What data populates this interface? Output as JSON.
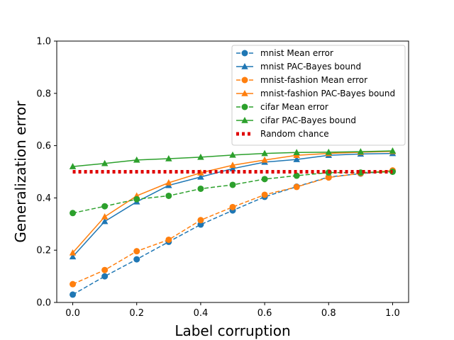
{
  "chart_data": {
    "type": "line",
    "title": "",
    "xlabel": "Label corruption",
    "ylabel": "Generalization error",
    "xlim": [
      -0.05,
      1.05
    ],
    "ylim": [
      0.0,
      1.0
    ],
    "xticks": [
      "0.0",
      "0.2",
      "0.4",
      "0.6",
      "0.8",
      "1.0"
    ],
    "yticks": [
      "0.0",
      "0.2",
      "0.4",
      "0.6",
      "0.8",
      "1.0"
    ],
    "xtick_values": [
      0.0,
      0.2,
      0.4,
      0.6,
      0.8,
      1.0
    ],
    "ytick_values": [
      0.0,
      0.2,
      0.4,
      0.6,
      0.8,
      1.0
    ],
    "grid": false,
    "legend_position": "top-right",
    "x": [
      0.0,
      0.1,
      0.2,
      0.3,
      0.4,
      0.5,
      0.6,
      0.7,
      0.8,
      0.9,
      1.0
    ],
    "series": [
      {
        "name": "mnist Mean error",
        "color": "#1f77b4",
        "dash": "dashed",
        "marker": "circle",
        "values": [
          0.03,
          0.1,
          0.165,
          0.232,
          0.298,
          0.352,
          0.404,
          0.443,
          0.48,
          0.493,
          0.503
        ]
      },
      {
        "name": "mnist PAC-Bayes bound",
        "color": "#1f77b4",
        "dash": "solid",
        "marker": "triangle",
        "values": [
          0.175,
          0.31,
          0.385,
          0.448,
          0.48,
          0.512,
          0.537,
          0.547,
          0.563,
          0.568,
          0.57
        ]
      },
      {
        "name": "mnist-fashion Mean error",
        "color": "#ff7f0e",
        "dash": "dashed",
        "marker": "circle",
        "values": [
          0.07,
          0.124,
          0.196,
          0.24,
          0.315,
          0.365,
          0.412,
          0.442,
          0.478,
          0.494,
          0.505
        ]
      },
      {
        "name": "mnist-fashion PAC-Bayes bound",
        "color": "#ff7f0e",
        "dash": "solid",
        "marker": "triangle",
        "values": [
          0.19,
          0.328,
          0.408,
          0.458,
          0.496,
          0.525,
          0.545,
          0.563,
          0.57,
          0.575,
          0.578
        ]
      },
      {
        "name": "cifar Mean error",
        "color": "#2ca02c",
        "dash": "dashed",
        "marker": "circle",
        "values": [
          0.342,
          0.368,
          0.395,
          0.408,
          0.435,
          0.45,
          0.472,
          0.485,
          0.497,
          0.497,
          0.5
        ]
      },
      {
        "name": "cifar PAC-Bayes bound",
        "color": "#2ca02c",
        "dash": "solid",
        "marker": "triangle",
        "values": [
          0.52,
          0.532,
          0.545,
          0.55,
          0.556,
          0.564,
          0.57,
          0.574,
          0.575,
          0.577,
          0.58
        ]
      },
      {
        "name": "Random chance",
        "color": "#e00000",
        "dash": "dotted",
        "marker": "none",
        "values": [
          0.5,
          0.5,
          0.5,
          0.5,
          0.5,
          0.5,
          0.5,
          0.5,
          0.5,
          0.5,
          0.5
        ]
      }
    ]
  }
}
